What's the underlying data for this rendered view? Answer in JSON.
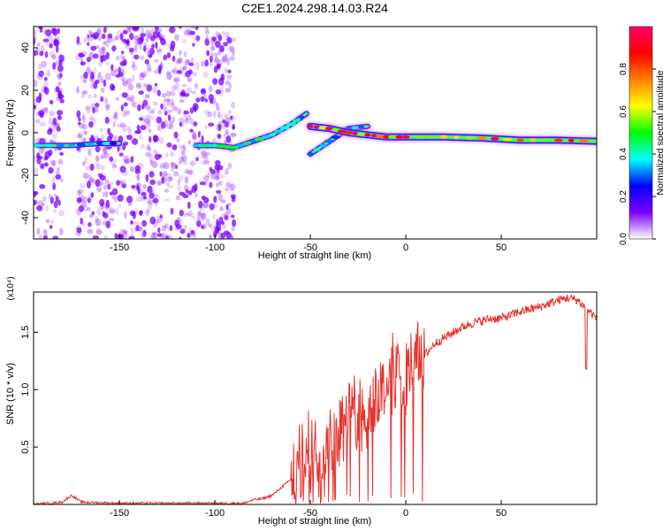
{
  "title": "C2E1.2024.298.14.03.R24",
  "chart_data": [
    {
      "type": "heatmap",
      "xlabel": "Height of straight line (km)",
      "ylabel": "Frequency (Hz)",
      "xlim": [
        -195,
        100
      ],
      "ylim": [
        -50,
        50
      ],
      "xticks": [
        -150,
        -100,
        -50,
        0,
        50
      ],
      "yticks": [
        -40,
        -20,
        0,
        20,
        40
      ],
      "xtick_labels": [
        "-150",
        "-100",
        "-50",
        "0",
        "50"
      ],
      "ytick_labels": [
        "-40",
        "-20",
        "0",
        "20",
        "40"
      ],
      "colorbar": {
        "label": "Normalized spectral amplitude",
        "range": [
          0,
          1
        ],
        "ticks": [
          0.0,
          0.2,
          0.4,
          0.6,
          0.8
        ],
        "tick_labels": [
          "0.0",
          "0.2",
          "0.4",
          "0.6",
          "0.8"
        ],
        "colormap": [
          "#ffffff",
          "#7b00ff",
          "#0000ff",
          "#00ffff",
          "#00ff00",
          "#ffff00",
          "#ff8000",
          "#ff0000",
          "#ff0066"
        ]
      },
      "noise_region": {
        "x": [
          -195,
          -90
        ],
        "note_color": "#9933ff"
      },
      "ridges": [
        {
          "name": "",
          "points": [
            [
              -193,
              -6
            ],
            [
              -175,
              -6
            ],
            [
              -160,
              -5
            ],
            [
              -150,
              -5
            ]
          ],
          "intensity": 0.35
        },
        {
          "name": "",
          "points": [
            [
              -110,
              -6
            ],
            [
              -100,
              -6
            ],
            [
              -90,
              -7
            ],
            [
              -80,
              -4
            ],
            [
              -70,
              -1
            ],
            [
              -60,
              4
            ],
            [
              -52,
              9
            ]
          ],
          "intensity": 0.45
        },
        {
          "name": "",
          "points": [
            [
              -50,
              -10
            ],
            [
              -40,
              -4
            ],
            [
              -30,
              2
            ],
            [
              -20,
              3
            ]
          ],
          "intensity": 0.4
        },
        {
          "name": "",
          "points": [
            [
              -50,
              3
            ],
            [
              -40,
              2
            ],
            [
              -30,
              0
            ],
            [
              -20,
              -1
            ],
            [
              -10,
              -2
            ],
            [
              0,
              -2
            ],
            [
              20,
              -2
            ],
            [
              40,
              -2.5
            ],
            [
              60,
              -3.5
            ],
            [
              80,
              -3.5
            ],
            [
              100,
              -4
            ]
          ],
          "intensity": 0.9
        }
      ]
    },
    {
      "type": "line",
      "xlabel": "Height of straight line (km)",
      "ylabel": "SNR (10 * v/v)",
      "yscale_label": "(x10⁴)",
      "xlim": [
        -195,
        100
      ],
      "ylim": [
        0,
        1.85
      ],
      "xticks": [
        -150,
        -100,
        -50,
        0,
        50
      ],
      "yticks": [
        0.5,
        1.0,
        1.5
      ],
      "xtick_labels": [
        "-150",
        "-100",
        "-50",
        "0",
        "50"
      ],
      "ytick_labels": [
        "0.5",
        "1.0",
        "1.5"
      ],
      "series": [
        {
          "color": "#e8322c",
          "x": [
            -195,
            -180,
            -175,
            -170,
            -150,
            -100,
            -85,
            -80,
            -75,
            -70,
            -65,
            -60,
            -55,
            -50,
            -45,
            -40,
            -35,
            -30,
            -25,
            -20,
            -15,
            -10,
            -5,
            0,
            5,
            10,
            15,
            20,
            25,
            30,
            35,
            40,
            45,
            50,
            55,
            60,
            65,
            70,
            75,
            80,
            85,
            90,
            95,
            100
          ],
          "y": [
            0.0,
            0.02,
            0.08,
            0.02,
            0.01,
            0.01,
            0.01,
            0.04,
            0.05,
            0.08,
            0.15,
            0.22,
            0.35,
            0.45,
            0.5,
            0.55,
            0.65,
            0.75,
            0.8,
            0.85,
            0.95,
            1.05,
            1.15,
            1.15,
            1.25,
            1.3,
            1.4,
            1.45,
            1.5,
            1.55,
            1.58,
            1.6,
            1.62,
            1.62,
            1.65,
            1.68,
            1.7,
            1.72,
            1.75,
            1.78,
            1.8,
            1.78,
            1.7,
            1.62
          ]
        }
      ]
    }
  ]
}
